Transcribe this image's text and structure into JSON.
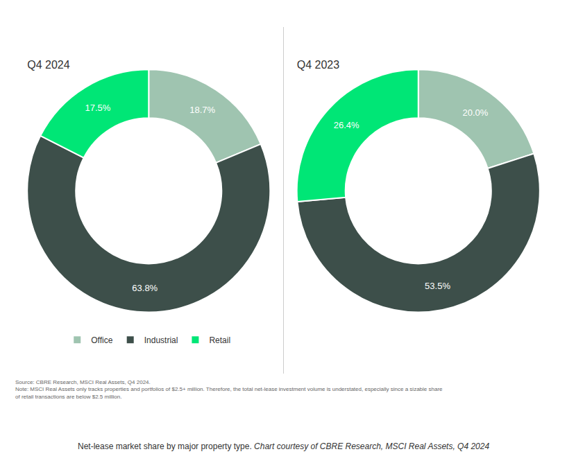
{
  "chart_data": [
    {
      "type": "pie",
      "title": "Q4 2024",
      "categories": [
        "Office",
        "Industrial",
        "Retail"
      ],
      "values": [
        18.7,
        63.8,
        17.5
      ],
      "value_labels": [
        "18.7%",
        "63.8%",
        "17.5%"
      ],
      "colors": [
        "#9fc4b0",
        "#3d4f4a",
        "#00e676"
      ],
      "data_labels": true,
      "legend": "bottom",
      "annotations": [
        "Source: CBRE Research, MSCI Real Assets, Q4 2024.",
        "Note: MSCI Real Assets only tracks properties and portfolios of $2.5+ million. Therefore, the total net-lease investment volume is understated, especially since a sizable share",
        "of retail transactions are below $2.5 million.",
        "Net-lease market share by major property type. ",
        "Chart courtesy of CBRE Research, MSCI Real Assets, Q4 2024"
      ]
    },
    {
      "type": "pie",
      "title": "Q4 2023",
      "categories": [
        "Office",
        "Industrial",
        "Retail"
      ],
      "values": [
        20.0,
        53.5,
        26.4
      ],
      "value_labels": [
        "20.0%",
        "53.5%",
        "26.4%"
      ],
      "colors": [
        "#9fc4b0",
        "#3d4f4a",
        "#00e676"
      ],
      "data_labels": true,
      "legend": "bottom"
    }
  ]
}
